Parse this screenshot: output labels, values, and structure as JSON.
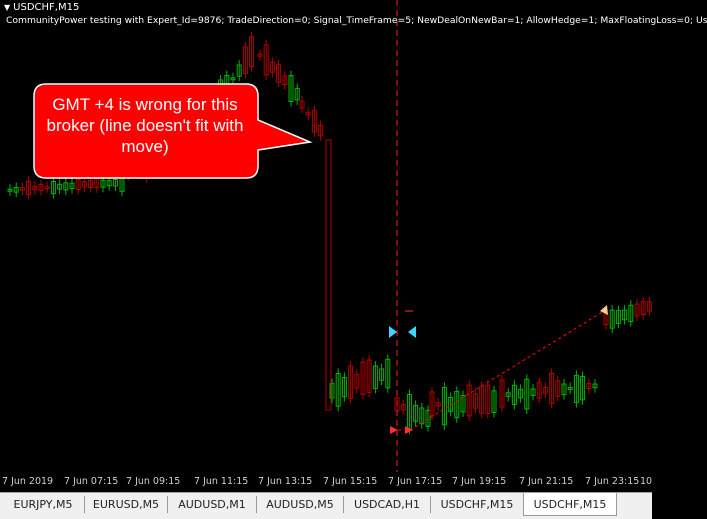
{
  "chart": {
    "symbol": "USDCHF,M15",
    "ea_params": "CommunityPower testing with Expert_Id=9876; TradeDirection=0; Signal_TimeFrame=5; NewDealOnNewBar=1; AllowHedge=1; MaxFloatingLoss=0; Us",
    "callout_text": "GMT +4 is wrong for this broker (line doesn't fit with move)",
    "time_labels": [
      "7 Jun 2019",
      "7 Jun 07:15",
      "7 Jun 09:15",
      "7 Jun 11:15",
      "7 Jun 13:15",
      "7 Jun 15:15",
      "7 Jun 17:15",
      "7 Jun 19:15",
      "7 Jun 21:15",
      "7 Jun 23:15",
      "10"
    ],
    "colors": {
      "background": "#000000",
      "bull": "#00b400",
      "bear": "#b00000",
      "vline": "#ff2020",
      "callout": "#ff0000",
      "trade_line": "#ff0000"
    }
  },
  "tabs": [
    {
      "label": "EURJPY,M5",
      "active": false
    },
    {
      "label": "EURUSD,M5",
      "active": false
    },
    {
      "label": "AUDUSD,M1",
      "active": false
    },
    {
      "label": "AUDUSD,M5",
      "active": false
    },
    {
      "label": "USDCAD,H1",
      "active": false
    },
    {
      "label": "USDCHF,M15",
      "active": false
    },
    {
      "label": "USDCHF,M15",
      "active": true
    }
  ]
}
